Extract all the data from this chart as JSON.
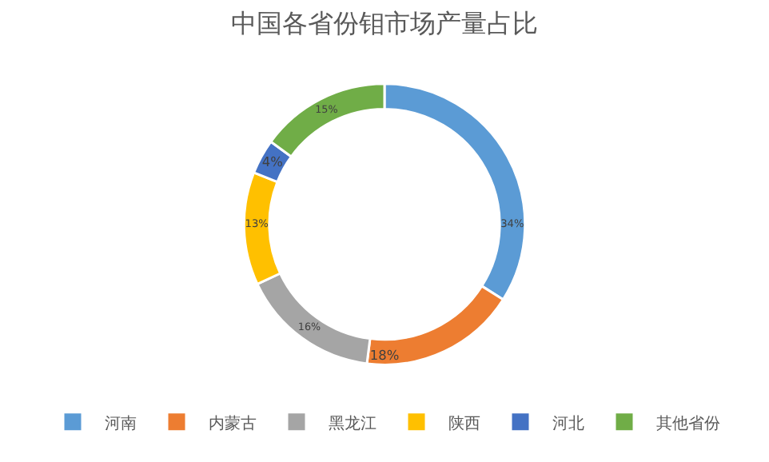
{
  "chart_data": {
    "type": "donut",
    "title": "中国各省份钼市场产量占比",
    "categories": [
      "河南",
      "内蒙古",
      "黑龙江",
      "陕西",
      "河北",
      "其他省份"
    ],
    "values": [
      34,
      18,
      16,
      13,
      4,
      15
    ],
    "value_labels": [
      "34%",
      "18%",
      "16%",
      "13%",
      "4%",
      "15%"
    ],
    "colors": [
      "#5b9bd5",
      "#ed7d31",
      "#a5a5a5",
      "#ffc000",
      "#4472c4",
      "#70ad47"
    ],
    "legend": "bottom"
  }
}
